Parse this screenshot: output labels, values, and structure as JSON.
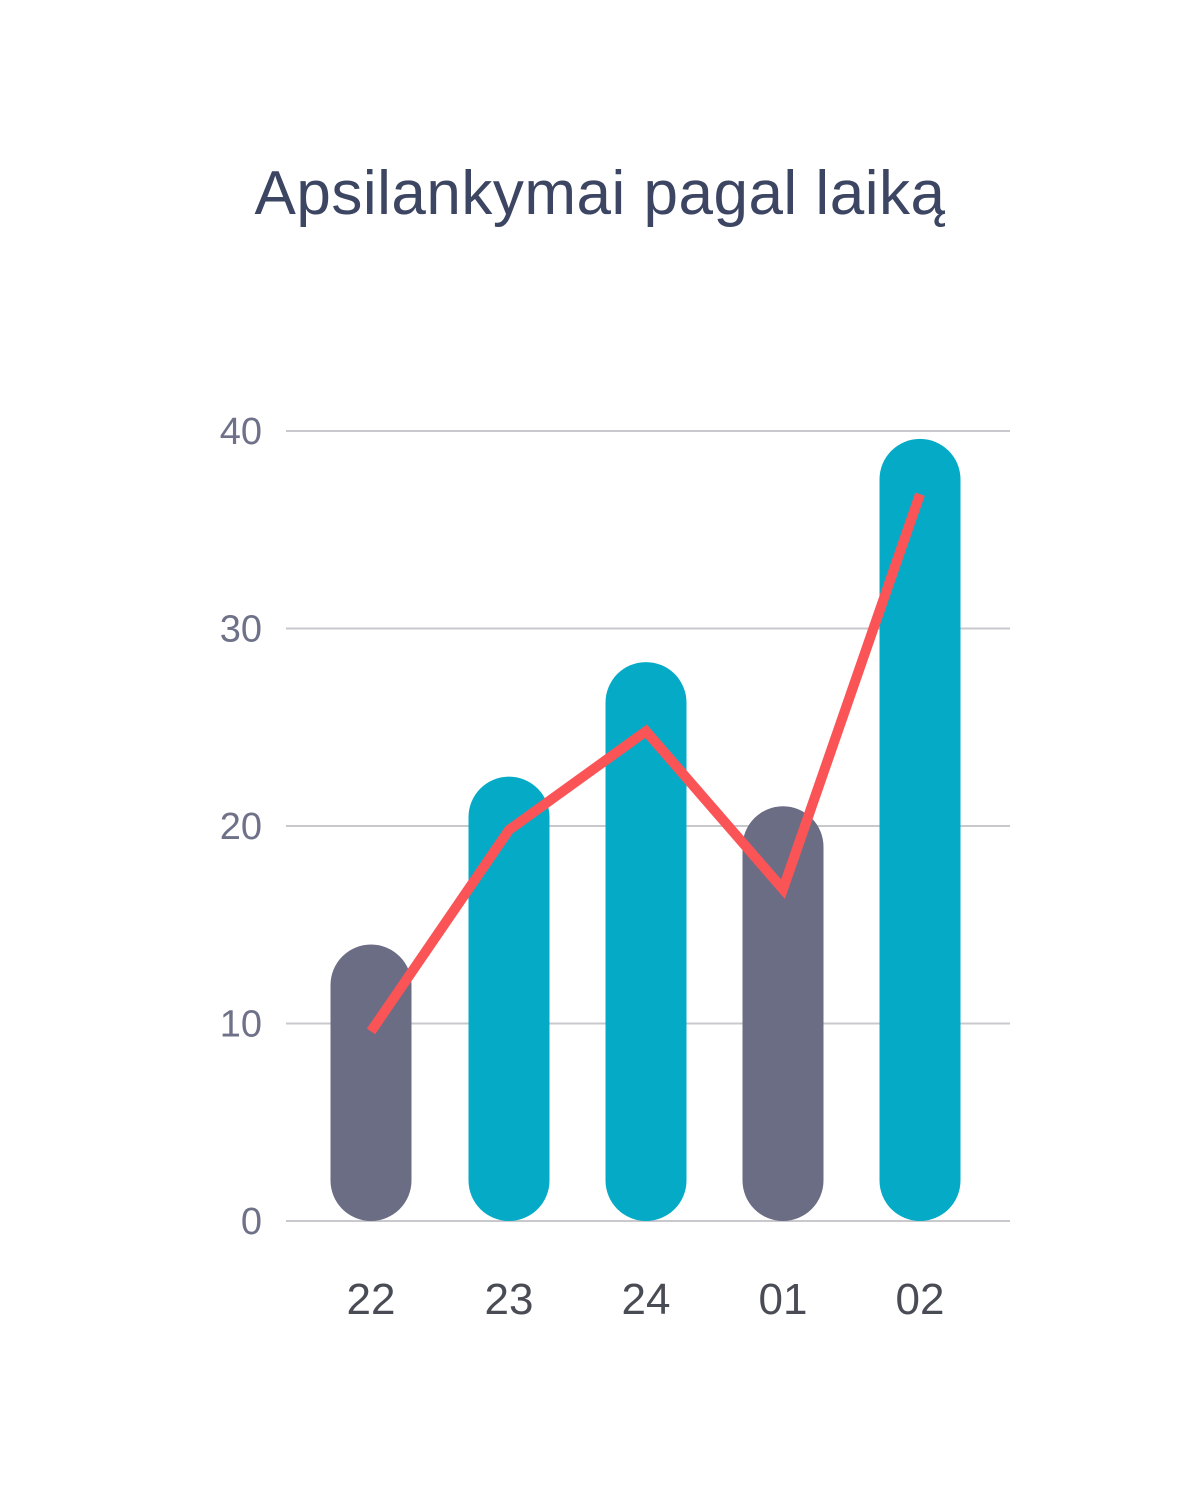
{
  "chart_data": {
    "type": "bar",
    "title": "Apsilankymai pagal laiką",
    "categories": [
      "22",
      "23",
      "24",
      "01",
      "02"
    ],
    "series": [
      {
        "type": "bar",
        "values": [
          14,
          22.5,
          28.3,
          21,
          39.6
        ],
        "colors": [
          "#6b6d85",
          "#05abc6",
          "#05abc6",
          "#6b6d85",
          "#05abc6"
        ]
      },
      {
        "type": "line",
        "values": [
          9.6,
          19.8,
          24.8,
          16.8,
          36.8
        ],
        "color": "#fb5456"
      }
    ],
    "yticks": [
      "0",
      "10",
      "20",
      "30",
      "40"
    ],
    "ylim": [
      0,
      40
    ],
    "grid": true,
    "gridColor": "#c9c9cd"
  }
}
